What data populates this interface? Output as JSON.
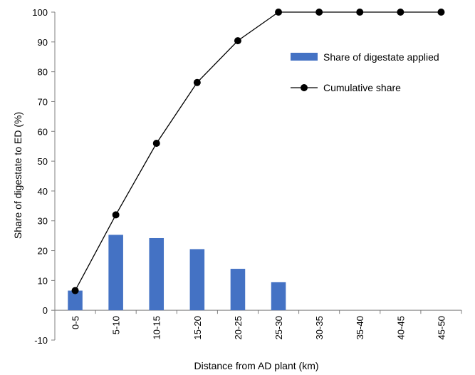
{
  "chart_data": {
    "type": "bar",
    "title": "",
    "xlabel": "Distance from AD plant (km)",
    "ylabel": "Share of digestate to ED (%)",
    "ylim": [
      -10,
      100
    ],
    "yticks": [
      -10,
      0,
      10,
      20,
      30,
      40,
      50,
      60,
      70,
      80,
      90,
      100
    ],
    "grid": false,
    "legend_position": "top-right",
    "categories": [
      "0-5",
      "5-10",
      "10-15",
      "15-20",
      "20-25",
      "25-30",
      "30-35",
      "35-40",
      "40-45",
      "45-50"
    ],
    "series": [
      {
        "name": "Share of digestate applied",
        "type": "bar",
        "color": "#4472C4",
        "values": [
          6.6,
          25.3,
          24.2,
          20.5,
          13.9,
          9.4,
          0,
          0,
          0,
          0
        ]
      },
      {
        "name": "Cumulative share",
        "type": "line",
        "color": "#000000",
        "marker": "circle",
        "values": [
          6.6,
          32.0,
          56.0,
          76.4,
          90.4,
          100,
          100,
          100,
          100,
          100
        ]
      }
    ]
  }
}
